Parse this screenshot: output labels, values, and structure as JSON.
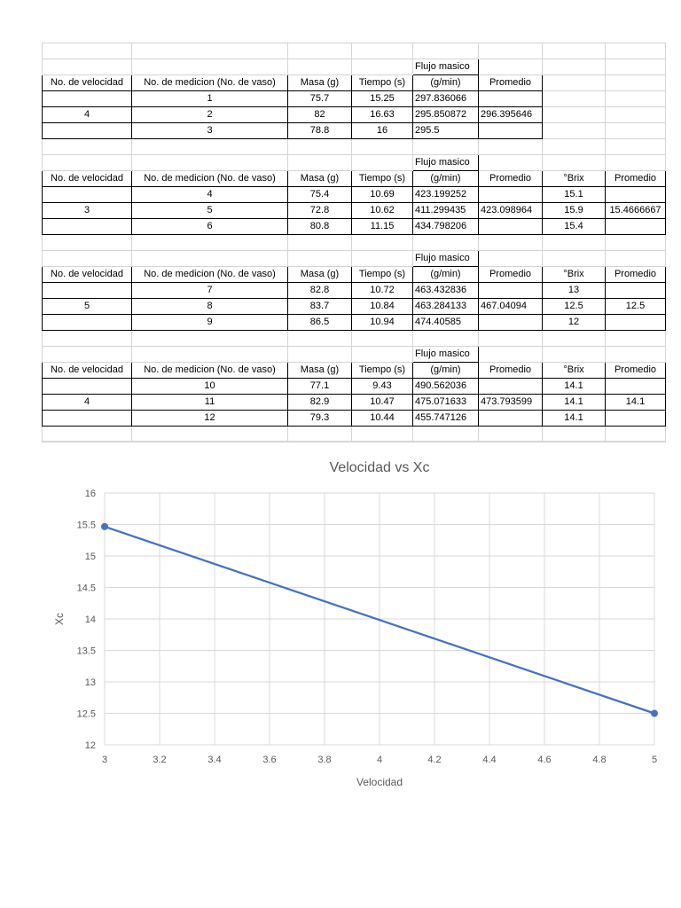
{
  "sheet": {
    "blocks": [
      {
        "header_top": [
          "",
          "",
          "",
          "",
          "Flujo masico",
          "",
          "",
          ""
        ],
        "header": [
          "No. de velocidad",
          "No. de medicion (No. de vaso)",
          "Masa (g)",
          "Tiempo (s)",
          "(g/min)",
          "Promedio",
          "",
          ""
        ],
        "rows": [
          [
            "",
            "1",
            "75.7",
            "15.25",
            "297.836066",
            "",
            "",
            ""
          ],
          [
            "4",
            "2",
            "82",
            "16.63",
            "295.850872",
            "296.395646",
            "",
            ""
          ],
          [
            "",
            "3",
            "78.8",
            "16",
            "295.5",
            "",
            "",
            ""
          ]
        ]
      },
      {
        "header_top": [
          "",
          "",
          "",
          "",
          "Flujo masico",
          "",
          "",
          ""
        ],
        "header": [
          "No. de velocidad",
          "No. de medicion (No. de vaso)",
          "Masa (g)",
          "Tiempo (s)",
          "(g/min)",
          "Promedio",
          "°Brix",
          "Promedio"
        ],
        "rows": [
          [
            "",
            "4",
            "75.4",
            "10.69",
            "423.199252",
            "",
            "15.1",
            ""
          ],
          [
            "3",
            "5",
            "72.8",
            "10.62",
            "411.299435",
            "423.098964",
            "15.9",
            "15.4666667"
          ],
          [
            "",
            "6",
            "80.8",
            "11.15",
            "434.798206",
            "",
            "15.4",
            ""
          ]
        ]
      },
      {
        "header_top": [
          "",
          "",
          "",
          "",
          "Flujo masico",
          "",
          "",
          ""
        ],
        "header": [
          "No. de velocidad",
          "No. de medicion (No. de vaso)",
          "Masa (g)",
          "Tiempo (s)",
          "(g/min)",
          "Promedio",
          "°Brix",
          "Promedio"
        ],
        "rows": [
          [
            "",
            "7",
            "82.8",
            "10.72",
            "463.432836",
            "",
            "13",
            ""
          ],
          [
            "5",
            "8",
            "83.7",
            "10.84",
            "463.284133",
            "467.04094",
            "12.5",
            "12.5"
          ],
          [
            "",
            "9",
            "86.5",
            "10.94",
            "474.40585",
            "",
            "12",
            ""
          ]
        ]
      },
      {
        "header_top": [
          "",
          "",
          "",
          "",
          "Flujo masico",
          "",
          "",
          ""
        ],
        "header": [
          "No. de velocidad",
          "No. de medicion (No. de vaso)",
          "Masa (g)",
          "Tiempo (s)",
          "(g/min)",
          "Promedio",
          "°Brix",
          "Promedio"
        ],
        "rows": [
          [
            "",
            "10",
            "77.1",
            "9.43",
            "490.562036",
            "",
            "14.1",
            ""
          ],
          [
            "4",
            "11",
            "82.9",
            "10.47",
            "475.071633",
            "473.793599",
            "14.1",
            "14.1"
          ],
          [
            "",
            "12",
            "79.3",
            "10.44",
            "455.747126",
            "",
            "14.1",
            ""
          ]
        ]
      }
    ]
  },
  "chart_data": {
    "type": "line",
    "title": "Velocidad vs Xc",
    "xlabel": "Velocidad",
    "ylabel": "Xc",
    "x": [
      3,
      5
    ],
    "series": [
      {
        "values": [
          15.4666667,
          12.5
        ],
        "color": "#4472c4"
      }
    ],
    "xlim": [
      3,
      5
    ],
    "ylim": [
      12,
      16
    ],
    "xticks": [
      "3",
      "3.2",
      "3.4",
      "3.6",
      "3.8",
      "4",
      "4.2",
      "4.4",
      "4.6",
      "4.8",
      "5"
    ],
    "yticks": [
      "12",
      "12.5",
      "13",
      "13.5",
      "14",
      "14.5",
      "15",
      "15.5",
      "16"
    ],
    "grid": "vertical-and-horizontal",
    "legend": "none"
  }
}
